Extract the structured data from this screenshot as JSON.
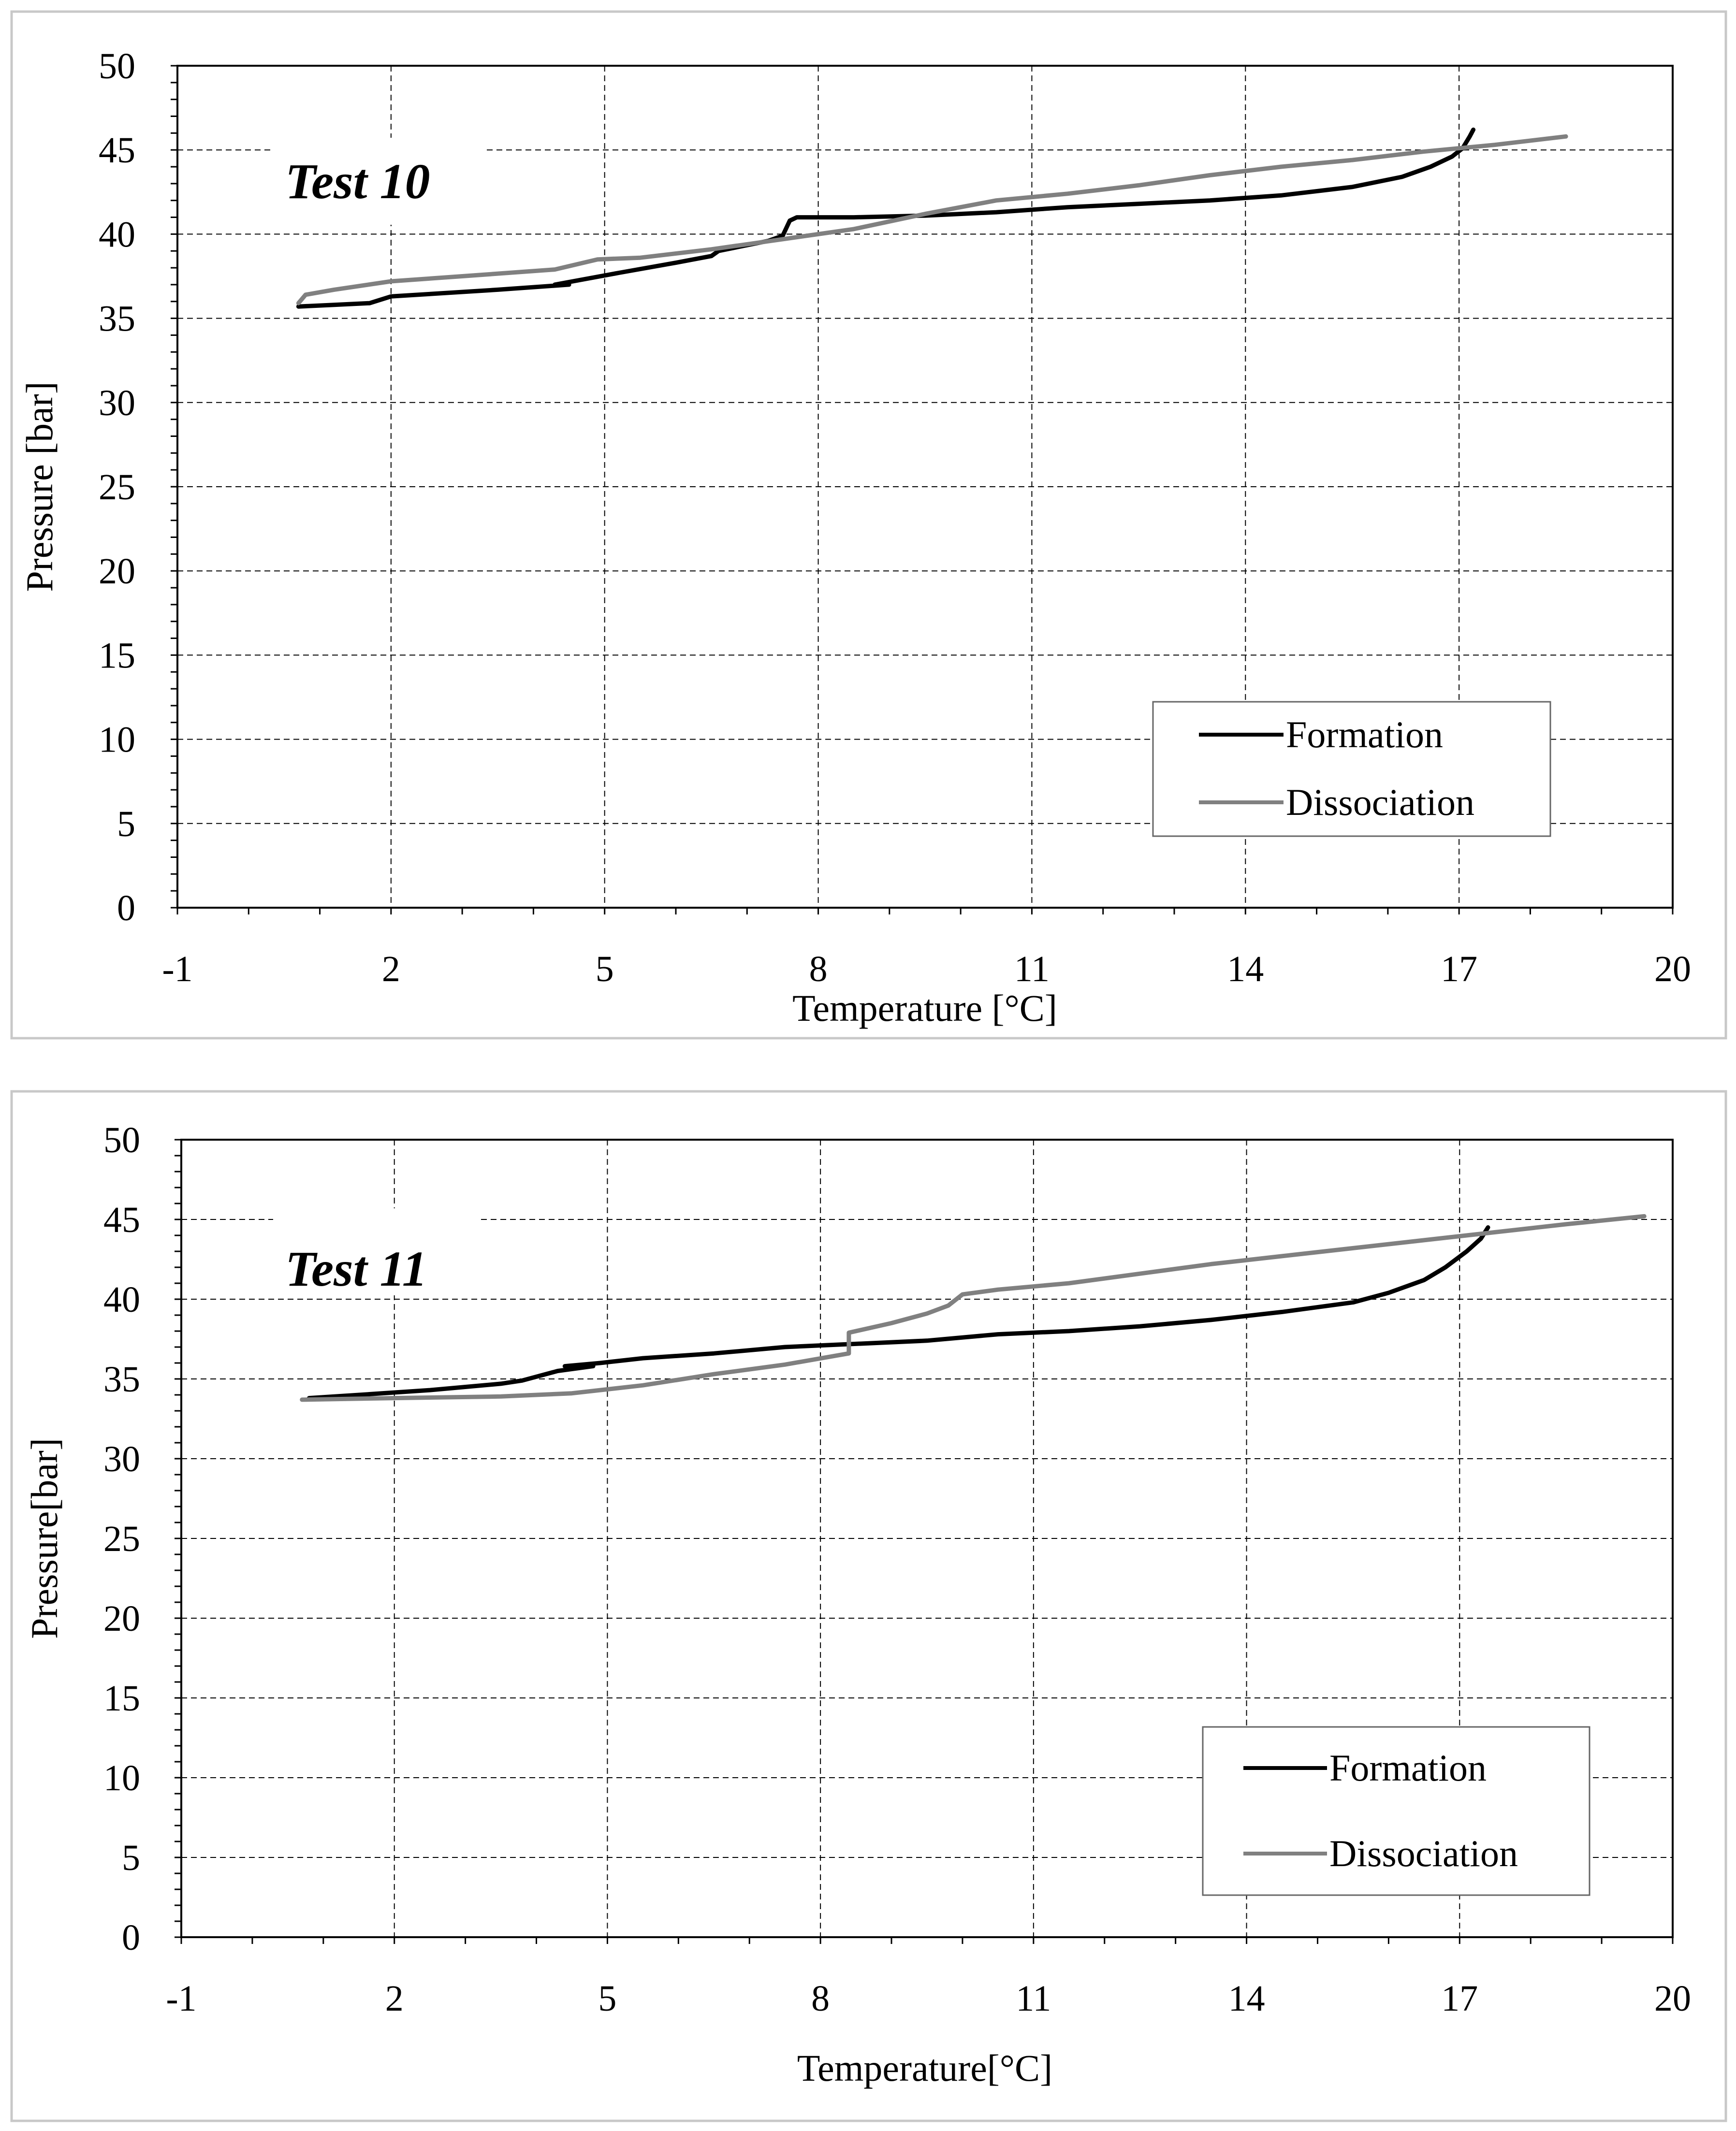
{
  "chart_data": [
    {
      "type": "line",
      "title": "Test 10",
      "xlabel": "Temperature [°C]",
      "ylabel": "Pressure [bar]",
      "xlim": [
        -1,
        20
      ],
      "ylim": [
        0,
        50
      ],
      "xticks": [
        -1,
        2,
        5,
        8,
        11,
        14,
        17,
        20
      ],
      "yticks": [
        0,
        5,
        10,
        15,
        20,
        25,
        30,
        35,
        40,
        45,
        50
      ],
      "grid": true,
      "legend_position": "bottom-right",
      "series": [
        {
          "name": "Formation",
          "color": "#000000",
          "x": [
            0.7,
            1.2,
            1.7,
            2.0,
            3.5,
            4.5,
            4.3,
            5.2,
            6.0,
            6.5,
            6.6,
            7.3,
            7.5,
            7.6,
            7.7,
            8.5,
            9.5,
            10.5,
            11.5,
            12.5,
            13.5,
            14.5,
            15.5,
            16.2,
            16.6,
            16.9,
            17.05,
            17.15,
            17.2
          ],
          "y": [
            35.7,
            35.8,
            35.9,
            36.3,
            36.7,
            37.0,
            37.0,
            37.7,
            38.3,
            38.7,
            39.0,
            39.6,
            39.9,
            40.8,
            41.0,
            41.0,
            41.1,
            41.3,
            41.6,
            41.8,
            42.0,
            42.3,
            42.8,
            43.4,
            44.0,
            44.6,
            45.1,
            45.8,
            46.2
          ]
        },
        {
          "name": "Dissociation",
          "color": "#808080",
          "x": [
            0.7,
            0.8,
            1.2,
            2.0,
            3.0,
            4.3,
            4.9,
            5.5,
            6.5,
            7.5,
            8.5,
            9.5,
            10.5,
            11.5,
            12.5,
            13.5,
            14.5,
            15.5,
            16.5,
            17.5,
            18.5
          ],
          "y": [
            35.9,
            36.4,
            36.7,
            37.2,
            37.5,
            37.9,
            38.5,
            38.6,
            39.1,
            39.7,
            40.3,
            41.2,
            42.0,
            42.4,
            42.9,
            43.5,
            44.0,
            44.4,
            44.9,
            45.3,
            45.8
          ]
        }
      ]
    },
    {
      "type": "line",
      "title": "Test 11",
      "xlabel": "Temperature[°C]",
      "ylabel": "Pressure[bar]",
      "xlim": [
        -1,
        20
      ],
      "ylim": [
        0,
        50
      ],
      "xticks": [
        -1,
        2,
        5,
        8,
        11,
        14,
        17,
        20
      ],
      "yticks": [
        0,
        5,
        10,
        15,
        20,
        25,
        30,
        35,
        40,
        45,
        50
      ],
      "grid": true,
      "legend_position": "bottom-right",
      "series": [
        {
          "name": "Formation",
          "color": "#000000",
          "x": [
            0.8,
            1.5,
            2.5,
            3.5,
            3.8,
            4.3,
            4.8,
            4.4,
            4.9,
            5.5,
            6.5,
            7.5,
            8.5,
            9.5,
            10.5,
            11.5,
            12.5,
            13.5,
            14.5,
            15.5,
            16.0,
            16.5,
            16.8,
            17.1,
            17.3,
            17.4
          ],
          "y": [
            33.8,
            34.0,
            34.3,
            34.7,
            34.9,
            35.5,
            35.8,
            35.8,
            36.0,
            36.3,
            36.6,
            37.0,
            37.2,
            37.4,
            37.8,
            38.0,
            38.3,
            38.7,
            39.2,
            39.8,
            40.4,
            41.2,
            42.0,
            43.0,
            43.8,
            44.5
          ]
        },
        {
          "name": "Dissociation",
          "color": "#808080",
          "x": [
            0.7,
            2.0,
            3.5,
            4.5,
            5.5,
            6.5,
            7.5,
            8.4,
            8.4,
            9.0,
            9.5,
            9.8,
            10.0,
            10.5,
            11.5,
            12.5,
            13.5,
            14.5,
            15.5,
            16.5,
            17.5,
            18.5,
            19.6
          ],
          "y": [
            33.7,
            33.8,
            33.9,
            34.1,
            34.6,
            35.3,
            35.9,
            36.6,
            37.9,
            38.5,
            39.1,
            39.6,
            40.3,
            40.6,
            41.0,
            41.6,
            42.2,
            42.7,
            43.2,
            43.7,
            44.2,
            44.7,
            45.2
          ]
        }
      ]
    }
  ]
}
